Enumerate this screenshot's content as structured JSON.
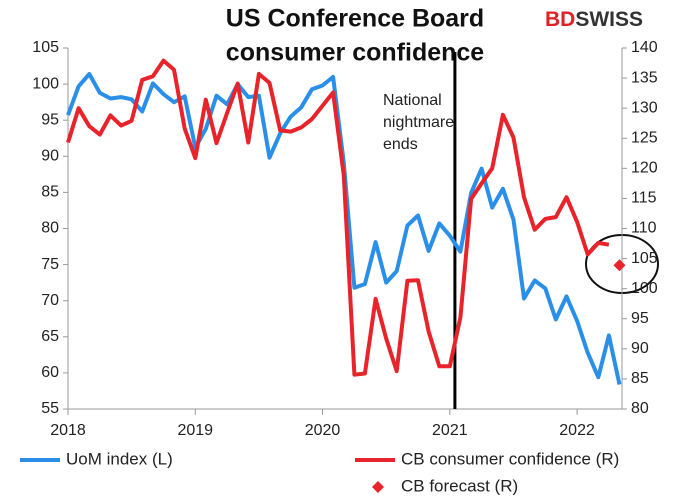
{
  "chart_data": {
    "type": "line",
    "title": [
      "US Conference Board",
      "consumer confidence"
    ],
    "logo": [
      {
        "text": "BD",
        "color": "#e02127"
      },
      {
        "text": "SWISS",
        "color": "#333333"
      }
    ],
    "annotation": {
      "lines": [
        "National",
        "nightmare",
        "ends"
      ],
      "x": 2021.04
    },
    "x": [
      2018,
      2018.083,
      2018.167,
      2018.25,
      2018.333,
      2018.417,
      2018.5,
      2018.583,
      2018.667,
      2018.75,
      2018.833,
      2018.917,
      2019,
      2019.083,
      2019.167,
      2019.25,
      2019.333,
      2019.417,
      2019.5,
      2019.583,
      2019.667,
      2019.75,
      2019.833,
      2019.917,
      2020,
      2020.083,
      2020.167,
      2020.25,
      2020.333,
      2020.417,
      2020.5,
      2020.583,
      2020.667,
      2020.75,
      2020.833,
      2020.917,
      2021,
      2021.083,
      2021.167,
      2021.25,
      2021.333,
      2021.417,
      2021.5,
      2021.583,
      2021.667,
      2021.75,
      2021.833,
      2021.917,
      2022,
      2022.083,
      2022.167,
      2022.25,
      2022.333
    ],
    "xlim": [
      2018,
      2022.4
    ],
    "xticks": [
      2018,
      2019,
      2020,
      2021,
      2022
    ],
    "ylim": [
      55,
      105
    ],
    "yticks": [
      55,
      60,
      65,
      70,
      75,
      80,
      85,
      90,
      95,
      100,
      105
    ],
    "y2lim": [
      80,
      140
    ],
    "y2ticks": [
      80,
      85,
      90,
      95,
      100,
      105,
      110,
      115,
      120,
      125,
      130,
      135,
      140
    ],
    "series": [
      {
        "name": "UoM index (L)",
        "color": "#2a8fe8",
        "style": "line",
        "axis": "y",
        "values": [
          95.7,
          99.7,
          101.4,
          98.8,
          98.0,
          98.2,
          97.9,
          96.2,
          100.1,
          98.6,
          97.5,
          98.3,
          91.2,
          93.8,
          98.4,
          97.2,
          100.0,
          98.2,
          98.4,
          89.8,
          93.2,
          95.5,
          96.8,
          99.3,
          99.8,
          101.0,
          89.1,
          71.8,
          72.3,
          78.1,
          72.5,
          74.1,
          80.4,
          81.8,
          76.9,
          80.7,
          79.0,
          76.8,
          84.9,
          88.3,
          82.9,
          85.5,
          81.2,
          70.3,
          72.8,
          71.7,
          67.4,
          70.6,
          67.2,
          62.8,
          59.4,
          65.2,
          58.4
        ]
      },
      {
        "name": "CB consumer confidence (R)",
        "color": "#e8232a",
        "style": "line",
        "axis": "y2",
        "values": [
          124.3,
          130.0,
          127.0,
          125.6,
          128.8,
          127.1,
          127.9,
          134.7,
          135.3,
          137.9,
          136.4,
          126.6,
          121.7,
          131.4,
          124.2,
          129.2,
          134.1,
          124.3,
          135.7,
          134.2,
          126.3,
          126.1,
          126.8,
          128.2,
          130.4,
          132.6,
          118.8,
          85.7,
          85.9,
          98.3,
          91.7,
          86.3,
          101.3,
          101.4,
          92.9,
          87.1,
          87.1,
          95.2,
          114.9,
          117.5,
          120.0,
          128.9,
          125.1,
          115.2,
          109.8,
          111.6,
          111.9,
          115.2,
          111.1,
          105.7,
          107.6,
          107.3,
          null
        ]
      },
      {
        "name": "CB forecast (R)",
        "color": "#e8232a",
        "style": "marker",
        "axis": "y2",
        "values": [
          null,
          null,
          null,
          null,
          null,
          null,
          null,
          null,
          null,
          null,
          null,
          null,
          null,
          null,
          null,
          null,
          null,
          null,
          null,
          null,
          null,
          null,
          null,
          null,
          null,
          null,
          null,
          null,
          null,
          null,
          null,
          null,
          null,
          null,
          null,
          null,
          null,
          null,
          null,
          null,
          null,
          null,
          null,
          null,
          null,
          null,
          null,
          null,
          null,
          null,
          null,
          null,
          103.9
        ]
      }
    ]
  }
}
